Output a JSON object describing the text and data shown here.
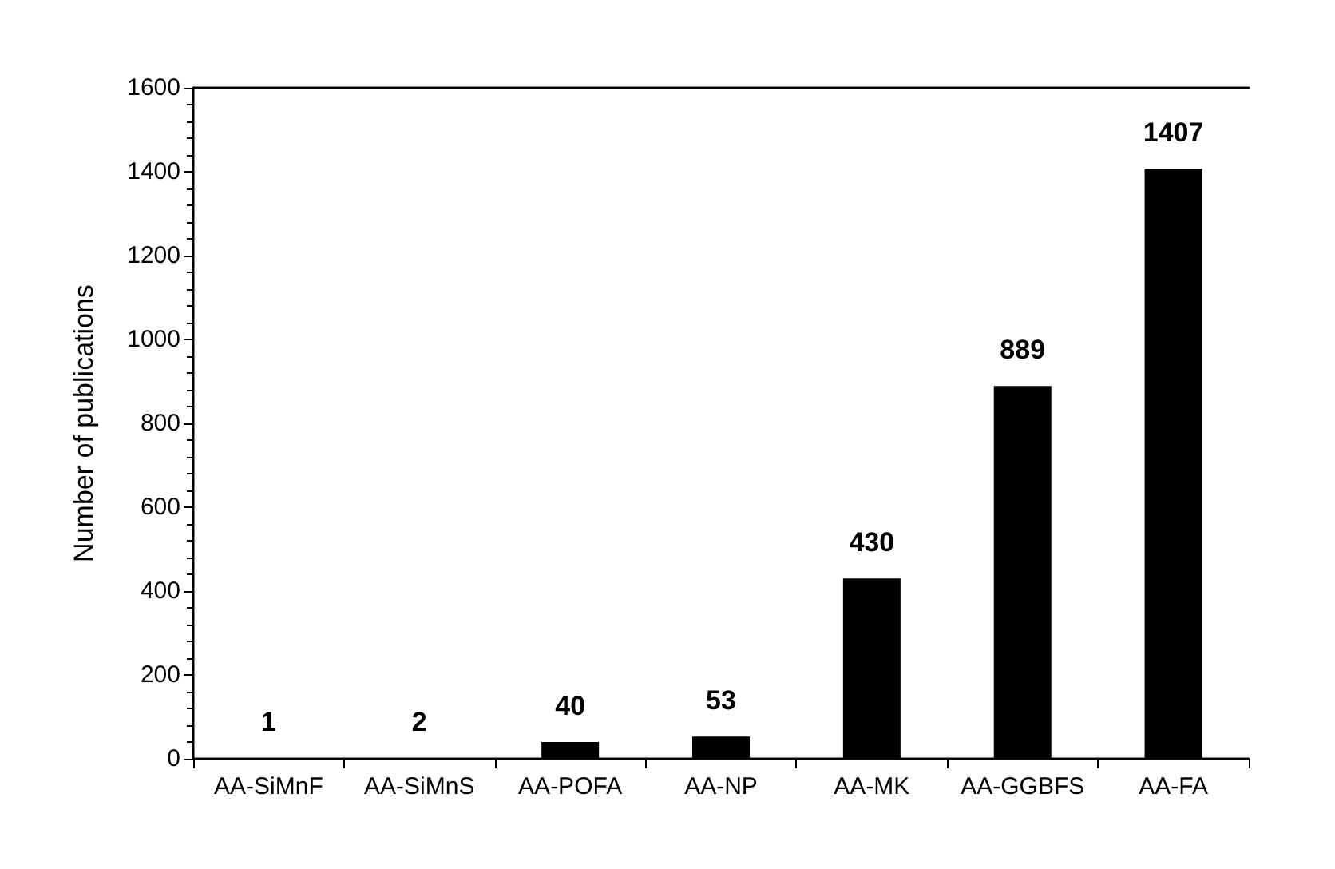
{
  "chart_data": {
    "type": "bar",
    "ylabel": "Number of publications",
    "categories": [
      "AA-SiMnF",
      "AA-SiMnS",
      "AA-POFA",
      "AA-NP",
      "AA-MK",
      "AA-GGBFS",
      "AA-FA"
    ],
    "values": [
      1,
      2,
      40,
      53,
      430,
      889,
      1407
    ],
    "color": "#000000",
    "data_labels": true,
    "ylim": [
      0,
      1600
    ],
    "yticks": [
      0,
      200,
      400,
      600,
      800,
      1000,
      1200,
      1400,
      1600
    ],
    "grid": false
  }
}
